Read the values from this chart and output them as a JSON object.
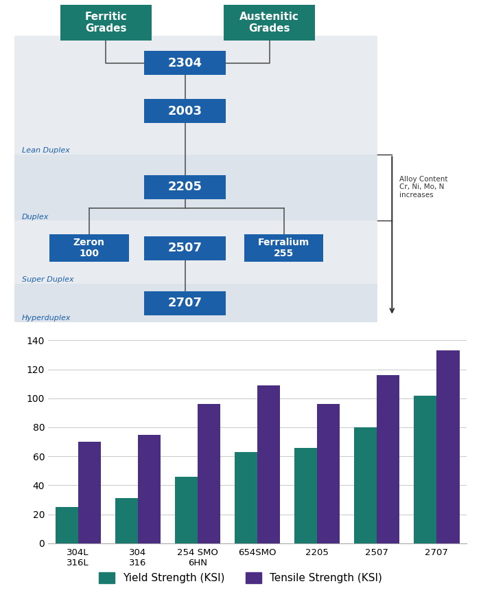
{
  "diagram": {
    "ferritic_label": "Ferritic\nGrades",
    "austenitic_label": "Austenitic\nGrades",
    "header_box_color": "#1a7a6e",
    "main_box_color": "#1a5fa8",
    "box_text_color": "#ffffff",
    "band_color_1": "#e8ecf0",
    "band_color_2": "#dde3eb",
    "lean_duplex_label": "Lean Duplex",
    "duplex_label": "Duplex",
    "super_duplex_label": "Super Duplex",
    "hyperduplex_label": "Hyperduplex",
    "label_color": "#1a5fa8",
    "label_fontsize": 8,
    "arrow_label": "Alloy Content\nCr, Ni, Mo, N\nincreases",
    "arrow_color": "#333333",
    "line_color": "#555555"
  },
  "chart": {
    "categories": [
      "304L\n316L",
      "304\n316",
      "254 SMO\n6HN",
      "654SMO",
      "2205",
      "2507",
      "2707"
    ],
    "yield_strength": [
      25,
      31,
      46,
      63,
      66,
      80,
      102
    ],
    "tensile_strength": [
      70,
      75,
      96,
      109,
      96,
      116,
      133
    ],
    "yield_color": "#1a7a6e",
    "tensile_color": "#4b2d82",
    "ylim": [
      0,
      140
    ],
    "yticks": [
      0,
      20,
      40,
      60,
      80,
      100,
      120,
      140
    ],
    "grid_color": "#cccccc",
    "legend_yield": "Yield Strength (KSI)",
    "legend_tensile": "Tensile Strength (KSI)"
  }
}
